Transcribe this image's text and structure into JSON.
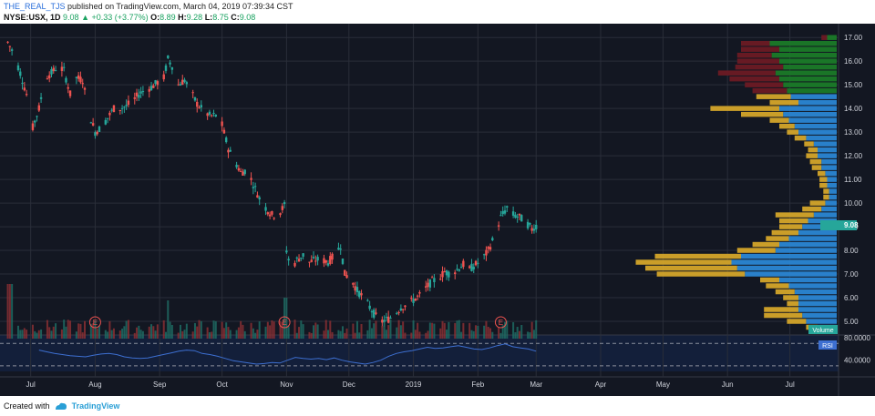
{
  "header": {
    "author": "THE_REAL_TJS",
    "published_text": "published on TradingView.com, March 04, 2019 07:39:34 CST",
    "symbol": "NYSE:USX, 1D",
    "last": "9.08",
    "arrow": "▲",
    "change": "+0.33 (+3.77%)",
    "o_label": "O:",
    "o": "8.89",
    "h_label": "H:",
    "h": "9.28",
    "l_label": "L:",
    "l": "8.75",
    "c_label": "C:",
    "c": "9.08"
  },
  "footer": {
    "created_with": "Created with",
    "brand": "TradingView"
  },
  "colors": {
    "background": "#131722",
    "up": "#26a69a",
    "down": "#ef5350",
    "grid": "#2a2e39",
    "axis_text": "#d1d4dc",
    "vp_up": "#2a86d4",
    "vp_down": "#d4a52a",
    "vp_va_up": "#1a7a28",
    "vp_va_down": "#6b1a24",
    "rsi_line": "#3d6fd1",
    "volume_label": "#26a69a",
    "rsi_label": "#3d6fd1",
    "price_label": "#26a69a"
  },
  "chart_data": [
    {
      "type": "candlestick",
      "symbol": "NYSE:USX",
      "interval": "1D",
      "ylim": [
        4.5,
        17.2
      ],
      "y_ticks": [
        "17.00",
        "16.00",
        "15.00",
        "14.00",
        "13.00",
        "12.00",
        "11.00",
        "10.00",
        "9.00",
        "8.00",
        "7.00",
        "6.00",
        "5.00"
      ],
      "x_ticks": [
        "Jul",
        "Aug",
        "Sep",
        "Oct",
        "Nov",
        "Dec",
        "2019",
        "Feb",
        "Mar",
        "Apr",
        "May",
        "Jun",
        "Jul"
      ],
      "last_price_label": "9.08",
      "earnings_markers": [
        "E",
        "E",
        "E"
      ],
      "close_path": [
        {
          "date": "2018-06-20",
          "close": 16.8
        },
        {
          "date": "2018-06-23",
          "close": 16.3
        },
        {
          "date": "2018-06-26",
          "close": 15.5
        },
        {
          "date": "2018-06-29",
          "close": 14.6
        },
        {
          "date": "2018-07-02",
          "close": 13.2
        },
        {
          "date": "2018-07-05",
          "close": 14.0
        },
        {
          "date": "2018-07-08",
          "close": 15.3
        },
        {
          "date": "2018-07-11",
          "close": 15.5
        },
        {
          "date": "2018-07-14",
          "close": 15.8
        },
        {
          "date": "2018-07-17",
          "close": 15.6
        },
        {
          "date": "2018-07-20",
          "close": 14.6
        },
        {
          "date": "2018-07-23",
          "close": 15.3
        },
        {
          "date": "2018-07-26",
          "close": 15.2
        },
        {
          "date": "2018-07-29",
          "close": 13.8
        },
        {
          "date": "2018-08-01",
          "close": 13.0
        },
        {
          "date": "2018-08-04",
          "close": 13.2
        },
        {
          "date": "2018-08-07",
          "close": 13.6
        },
        {
          "date": "2018-08-10",
          "close": 14.0
        },
        {
          "date": "2018-08-13",
          "close": 14.0
        },
        {
          "date": "2018-08-16",
          "close": 14.1
        },
        {
          "date": "2018-08-19",
          "close": 14.3
        },
        {
          "date": "2018-08-22",
          "close": 14.6
        },
        {
          "date": "2018-08-25",
          "close": 14.8
        },
        {
          "date": "2018-08-28",
          "close": 14.9
        },
        {
          "date": "2018-08-31",
          "close": 15.1
        },
        {
          "date": "2018-09-03",
          "close": 15.3
        },
        {
          "date": "2018-09-05",
          "close": 16.1
        },
        {
          "date": "2018-09-07",
          "close": 15.8
        },
        {
          "date": "2018-09-10",
          "close": 15.0
        },
        {
          "date": "2018-09-13",
          "close": 15.2
        },
        {
          "date": "2018-09-16",
          "close": 14.7
        },
        {
          "date": "2018-09-19",
          "close": 14.2
        },
        {
          "date": "2018-09-22",
          "close": 13.9
        },
        {
          "date": "2018-09-25",
          "close": 13.7
        },
        {
          "date": "2018-09-28",
          "close": 13.7
        },
        {
          "date": "2018-10-01",
          "close": 13.3
        },
        {
          "date": "2018-10-04",
          "close": 12.3
        },
        {
          "date": "2018-10-07",
          "close": 11.8
        },
        {
          "date": "2018-10-10",
          "close": 11.3
        },
        {
          "date": "2018-10-13",
          "close": 11.4
        },
        {
          "date": "2018-10-16",
          "close": 10.8
        },
        {
          "date": "2018-10-19",
          "close": 10.2
        },
        {
          "date": "2018-10-22",
          "close": 9.8
        },
        {
          "date": "2018-10-25",
          "close": 9.5
        },
        {
          "date": "2018-10-28",
          "close": 9.5
        },
        {
          "date": "2018-10-31",
          "close": 9.9
        },
        {
          "date": "2018-11-01",
          "close": 8.0
        },
        {
          "date": "2018-11-03",
          "close": 7.2
        },
        {
          "date": "2018-11-06",
          "close": 7.6
        },
        {
          "date": "2018-11-09",
          "close": 7.8
        },
        {
          "date": "2018-11-12",
          "close": 7.5
        },
        {
          "date": "2018-11-15",
          "close": 7.6
        },
        {
          "date": "2018-11-18",
          "close": 7.6
        },
        {
          "date": "2018-11-21",
          "close": 7.5
        },
        {
          "date": "2018-11-24",
          "close": 7.8
        },
        {
          "date": "2018-11-27",
          "close": 8.2
        },
        {
          "date": "2018-11-29",
          "close": 7.0
        },
        {
          "date": "2018-12-02",
          "close": 6.8
        },
        {
          "date": "2018-12-05",
          "close": 6.3
        },
        {
          "date": "2018-12-08",
          "close": 6.0
        },
        {
          "date": "2018-12-11",
          "close": 5.6
        },
        {
          "date": "2018-12-14",
          "close": 5.2
        },
        {
          "date": "2018-12-17",
          "close": 5.0
        },
        {
          "date": "2018-12-20",
          "close": 5.1
        },
        {
          "date": "2018-12-23",
          "close": 5.3
        },
        {
          "date": "2018-12-26",
          "close": 5.6
        },
        {
          "date": "2018-12-29",
          "close": 5.7
        },
        {
          "date": "2019-01-01",
          "close": 5.9
        },
        {
          "date": "2019-01-04",
          "close": 6.1
        },
        {
          "date": "2019-01-07",
          "close": 6.4
        },
        {
          "date": "2019-01-10",
          "close": 6.7
        },
        {
          "date": "2019-01-13",
          "close": 6.8
        },
        {
          "date": "2019-01-16",
          "close": 7.1
        },
        {
          "date": "2019-01-19",
          "close": 7.0
        },
        {
          "date": "2019-01-22",
          "close": 7.2
        },
        {
          "date": "2019-01-25",
          "close": 7.4
        },
        {
          "date": "2019-01-28",
          "close": 7.2
        },
        {
          "date": "2019-01-31",
          "close": 7.4
        },
        {
          "date": "2019-02-03",
          "close": 7.6
        },
        {
          "date": "2019-02-06",
          "close": 8.0
        },
        {
          "date": "2019-02-09",
          "close": 8.6
        },
        {
          "date": "2019-02-12",
          "close": 9.4
        },
        {
          "date": "2019-02-15",
          "close": 9.8
        },
        {
          "date": "2019-02-18",
          "close": 9.5
        },
        {
          "date": "2019-02-21",
          "close": 9.4
        },
        {
          "date": "2019-02-24",
          "close": 9.2
        },
        {
          "date": "2019-02-27",
          "close": 8.9
        },
        {
          "date": "2019-03-01",
          "close": 9.08
        }
      ]
    },
    {
      "type": "bar",
      "name": "Volume",
      "label": "Volume",
      "description_values": "relative daily volume (0-1), tall spikes near start, Sep, Oct/Nov"
    },
    {
      "type": "line",
      "name": "RSI",
      "label": "RSI",
      "y_ticks": [
        "80.0000",
        "40.0000"
      ],
      "bands": [
        70,
        30
      ],
      "ylim": [
        20,
        85
      ],
      "values": [
        58,
        55,
        52,
        50,
        48,
        47,
        46,
        49,
        51,
        52,
        50,
        46,
        44,
        43,
        44,
        47,
        50,
        53,
        56,
        58,
        57,
        52,
        50,
        47,
        43,
        39,
        37,
        35,
        33,
        34,
        36,
        35,
        40,
        45,
        43,
        42,
        43,
        41,
        44,
        40,
        37,
        35,
        33,
        36,
        40,
        47,
        52,
        55,
        57,
        60,
        63,
        61,
        62,
        64,
        66,
        63,
        60,
        59,
        62,
        66,
        69,
        64,
        62,
        60,
        56
      ]
    },
    {
      "type": "bar",
      "name": "Volume Profile",
      "orientation": "horizontal",
      "price_bins": [
        17.0,
        16.75,
        16.5,
        16.25,
        16.0,
        15.75,
        15.5,
        15.25,
        15.0,
        14.75,
        14.5,
        14.25,
        14.0,
        13.75,
        13.5,
        13.25,
        13.0,
        12.75,
        12.5,
        12.25,
        12.0,
        11.75,
        11.5,
        11.25,
        11.0,
        10.75,
        10.5,
        10.25,
        10.0,
        9.75,
        9.5,
        9.25,
        9.0,
        8.75,
        8.5,
        8.25,
        8.0,
        7.75,
        7.5,
        7.25,
        7.0,
        6.75,
        6.5,
        6.25,
        6.0,
        5.75,
        5.5,
        5.25,
        5.0,
        4.75
      ],
      "up_volume": [
        0.05,
        0.35,
        0.3,
        0.34,
        0.3,
        0.28,
        0.32,
        0.3,
        0.28,
        0.26,
        0.24,
        0.2,
        0.3,
        0.28,
        0.25,
        0.22,
        0.2,
        0.16,
        0.12,
        0.1,
        0.1,
        0.08,
        0.08,
        0.06,
        0.05,
        0.05,
        0.04,
        0.04,
        0.06,
        0.08,
        0.12,
        0.15,
        0.18,
        0.2,
        0.25,
        0.3,
        0.32,
        0.5,
        0.55,
        0.52,
        0.48,
        0.3,
        0.25,
        0.22,
        0.2,
        0.2,
        0.2,
        0.18,
        0.16,
        0.1
      ],
      "down_volume": [
        0.03,
        0.15,
        0.2,
        0.18,
        0.22,
        0.25,
        0.3,
        0.26,
        0.2,
        0.18,
        0.18,
        0.15,
        0.36,
        0.22,
        0.1,
        0.08,
        0.06,
        0.06,
        0.05,
        0.05,
        0.06,
        0.06,
        0.05,
        0.04,
        0.04,
        0.04,
        0.03,
        0.03,
        0.08,
        0.1,
        0.2,
        0.15,
        0.12,
        0.14,
        0.12,
        0.14,
        0.2,
        0.45,
        0.5,
        0.48,
        0.46,
        0.1,
        0.12,
        0.1,
        0.08,
        0.06,
        0.18,
        0.2,
        0.1,
        0.06
      ]
    }
  ]
}
